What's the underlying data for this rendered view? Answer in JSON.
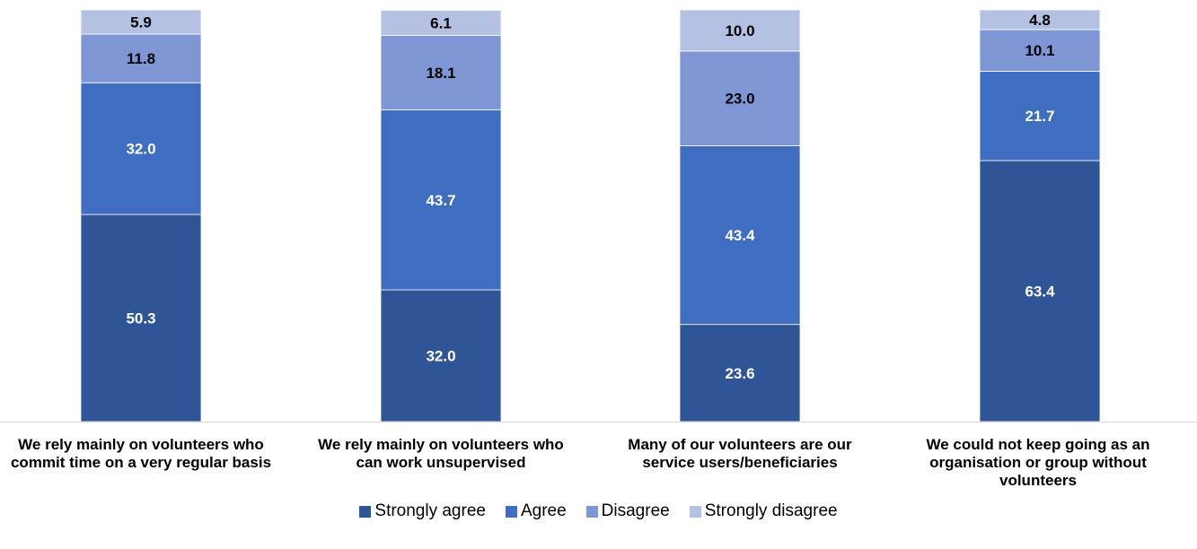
{
  "chart_data": {
    "type": "bar",
    "stacked": true,
    "title": "",
    "xlabel": "",
    "ylabel": "",
    "ylim": [
      0,
      100
    ],
    "grid": false,
    "legend_position": "bottom",
    "categories": [
      "We rely mainly on volunteers who commit time on a very regular basis",
      "We rely mainly on volunteers who can work unsupervised",
      "Many of our volunteers are our service users/beneficiaries",
      "We could not keep going as an organisation or group without volunteers"
    ],
    "series": [
      {
        "name": "Strongly agree",
        "color": "#2f5597",
        "label_color": "#ffffff",
        "values": [
          50.3,
          32.0,
          23.6,
          63.4
        ]
      },
      {
        "name": "Agree",
        "color": "#3f6dbf",
        "label_color": "#ffffff",
        "values": [
          32.0,
          43.7,
          43.4,
          21.7
        ]
      },
      {
        "name": "Disagree",
        "color": "#7f96d5",
        "label_color": "#000000",
        "values": [
          11.8,
          18.1,
          23.0,
          10.1
        ]
      },
      {
        "name": "Strongly disagree",
        "color": "#b4c1e3",
        "label_color": "#000000",
        "values": [
          5.9,
          6.1,
          10.0,
          4.8
        ]
      }
    ],
    "data_labels": [
      [
        "50.3",
        "32.0",
        "23.6",
        "63.4"
      ],
      [
        "32.0",
        "43.7",
        "43.4",
        "21.7"
      ],
      [
        "11.8",
        "18.1",
        "23.0",
        "10.1"
      ],
      [
        "5.9",
        "6.1",
        "10.0",
        "4.8"
      ]
    ]
  }
}
